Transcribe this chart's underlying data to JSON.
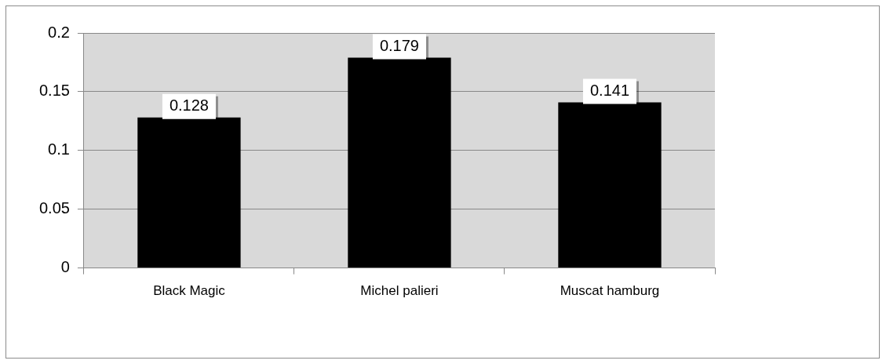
{
  "chart_data": {
    "type": "bar",
    "categories": [
      "Black Magic",
      "Michel palieri",
      "Muscat hamburg"
    ],
    "values": [
      0.128,
      0.179,
      0.141
    ],
    "color": "#000000",
    "ylim": [
      0,
      0.2
    ],
    "yticks": [
      0,
      0.05,
      0.1,
      0.15,
      0.2
    ],
    "grid": "y",
    "data_labels": true,
    "legend": false
  }
}
